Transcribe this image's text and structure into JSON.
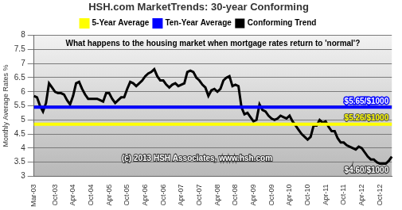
{
  "chart_data": {
    "type": "line",
    "title": "HSH.com MarketTrends: 30-year Conforming",
    "y_label": "Monthly Average Rates %",
    "annotations": [
      "What happens to the housing market when mortgage rates return to 'normal'?",
      "$5.65/$1000",
      "$5.26/$1000",
      "(c) 2013 HSH Associates, www.hsh.com",
      "$4.60/$1000"
    ],
    "categories": [
      "Mar-03",
      null,
      null,
      null,
      null,
      null,
      null,
      "Oct-03",
      null,
      null,
      null,
      null,
      null,
      "Apr-04",
      null,
      null,
      null,
      null,
      null,
      "Oct-04",
      null,
      null,
      null,
      null,
      null,
      "Apr-05",
      null,
      null,
      null,
      null,
      null,
      "Oct-05",
      null,
      null,
      null,
      null,
      null,
      "Apr-06",
      null,
      null,
      null,
      null,
      null,
      "Oct-06",
      null,
      null,
      null,
      null,
      null,
      "Apr-07",
      null,
      null,
      null,
      null,
      null,
      "Oct-07",
      null,
      null,
      null,
      null,
      null,
      "Apr-08",
      null,
      null,
      null,
      null,
      null,
      "Oct-08",
      null,
      null,
      null,
      null,
      null,
      "Apr-09",
      null,
      null,
      null,
      null,
      null,
      "Oct-09",
      null,
      null,
      null,
      null,
      null,
      "Apr-10",
      null,
      null,
      null,
      null,
      null,
      "Oct-10",
      null,
      null,
      null,
      null,
      null,
      "Apr-11",
      null,
      null,
      null,
      null,
      null,
      "Oct-11",
      null,
      null,
      null,
      null,
      null,
      "Apr-12",
      null,
      null,
      null,
      null,
      null,
      "Oct-12",
      null,
      null,
      null,
      null
    ],
    "series": [
      {
        "name": "Conforming Trend",
        "color": "#000000",
        "values": [
          5.85,
          5.8,
          5.5,
          5.3,
          5.6,
          6.3,
          6.15,
          6.0,
          5.95,
          5.95,
          5.9,
          5.7,
          5.55,
          5.85,
          6.3,
          6.35,
          6.1,
          5.9,
          5.75,
          5.75,
          5.75,
          5.75,
          5.7,
          5.65,
          5.95,
          5.95,
          5.75,
          5.6,
          5.7,
          5.8,
          5.8,
          6.1,
          6.35,
          6.3,
          6.2,
          6.3,
          6.4,
          6.55,
          6.65,
          6.7,
          6.8,
          6.55,
          6.4,
          6.4,
          6.25,
          6.15,
          6.25,
          6.3,
          6.2,
          6.25,
          6.3,
          6.7,
          6.75,
          6.7,
          6.5,
          6.4,
          6.25,
          6.15,
          5.85,
          6.05,
          6.1,
          6.0,
          6.1,
          6.4,
          6.5,
          6.55,
          6.2,
          6.25,
          6.2,
          5.45,
          5.2,
          5.25,
          5.1,
          4.95,
          5.0,
          5.55,
          5.35,
          5.3,
          5.15,
          5.05,
          5.0,
          5.05,
          5.15,
          5.1,
          5.05,
          5.15,
          4.95,
          4.8,
          4.65,
          4.5,
          4.4,
          4.3,
          4.4,
          4.8,
          4.8,
          5.0,
          4.9,
          4.95,
          4.75,
          4.6,
          4.6,
          4.35,
          4.2,
          4.2,
          4.1,
          4.05,
          4.0,
          3.95,
          4.05,
          4.0,
          3.85,
          3.7,
          3.6,
          3.6,
          3.5,
          3.45,
          3.45,
          3.45,
          3.55,
          3.7
        ]
      },
      {
        "name": "Ten-Year Average",
        "color": "#0000ff",
        "values": [
          5.45,
          5.45,
          5.45,
          5.45,
          5.45,
          5.45,
          5.45,
          5.45,
          5.45,
          5.45,
          5.45,
          5.45,
          5.45,
          5.45,
          5.45,
          5.45,
          5.45,
          5.45,
          5.45,
          5.45,
          5.45,
          5.45,
          5.45,
          5.45,
          5.45,
          5.45,
          5.45,
          5.45,
          5.45,
          5.45,
          5.45,
          5.45,
          5.45,
          5.45,
          5.45,
          5.45,
          5.45,
          5.45,
          5.45,
          5.45,
          5.45,
          5.45,
          5.45,
          5.45,
          5.45,
          5.45,
          5.45,
          5.45,
          5.45,
          5.45,
          5.45,
          5.45,
          5.45,
          5.45,
          5.45,
          5.45,
          5.45,
          5.45,
          5.45,
          5.45,
          5.45,
          5.45,
          5.45,
          5.45,
          5.45,
          5.45,
          5.45,
          5.45,
          5.45,
          5.45,
          5.45,
          5.45,
          5.45,
          5.45,
          5.45,
          5.45,
          5.45,
          5.45,
          5.45,
          5.45,
          5.45,
          5.45,
          5.45,
          5.45,
          5.45,
          5.45,
          5.45,
          5.45,
          5.45,
          5.45,
          5.45,
          5.45,
          5.45,
          5.45,
          5.45,
          5.45,
          5.45,
          5.45,
          5.45,
          5.45,
          5.45,
          5.45,
          5.45,
          5.45,
          5.45,
          5.45,
          5.45,
          5.45,
          5.45,
          5.45,
          5.45,
          5.45,
          5.45,
          5.45,
          5.45,
          5.45,
          5.45,
          5.45,
          5.45,
          5.45
        ]
      },
      {
        "name": "5-Year Average",
        "color": "#ffff00",
        "values": [
          4.85,
          4.85,
          4.85,
          4.85,
          4.85,
          4.85,
          4.85,
          4.85,
          4.85,
          4.85,
          4.85,
          4.85,
          4.85,
          4.85,
          4.85,
          4.85,
          4.85,
          4.85,
          4.85,
          4.85,
          4.85,
          4.85,
          4.85,
          4.85,
          4.85,
          4.85,
          4.85,
          4.85,
          4.85,
          4.85,
          4.85,
          4.85,
          4.85,
          4.85,
          4.85,
          4.85,
          4.85,
          4.85,
          4.85,
          4.85,
          4.85,
          4.85,
          4.85,
          4.85,
          4.85,
          4.85,
          4.85,
          4.85,
          4.85,
          4.85,
          4.85,
          4.85,
          4.85,
          4.85,
          4.85,
          4.85,
          4.85,
          4.85,
          4.85,
          4.85,
          4.85,
          4.85,
          4.85,
          4.85,
          4.85,
          4.85,
          4.85,
          4.85,
          4.85,
          4.85,
          4.85,
          4.85,
          4.85,
          4.85,
          4.85,
          4.85,
          4.85,
          4.85,
          4.85,
          4.85,
          4.85,
          4.85,
          4.85,
          4.85,
          4.85,
          4.85,
          4.85,
          4.85,
          4.85,
          4.85,
          4.85,
          4.85,
          4.85,
          4.85,
          4.85,
          4.85,
          4.85,
          4.85,
          4.85,
          4.85,
          4.85,
          4.85,
          4.85,
          4.85,
          4.85,
          4.85,
          4.85,
          4.85,
          4.85,
          4.85,
          4.85,
          4.85,
          4.85,
          4.85,
          4.85,
          4.85,
          4.85,
          4.85,
          4.85,
          4.85
        ]
      }
    ],
    "ylim": [
      3,
      8
    ],
    "yticks": [
      3,
      3.5,
      4,
      4.5,
      5,
      5.5,
      6,
      6.5,
      7,
      7.5,
      8
    ],
    "grid": true,
    "legend": "top"
  }
}
